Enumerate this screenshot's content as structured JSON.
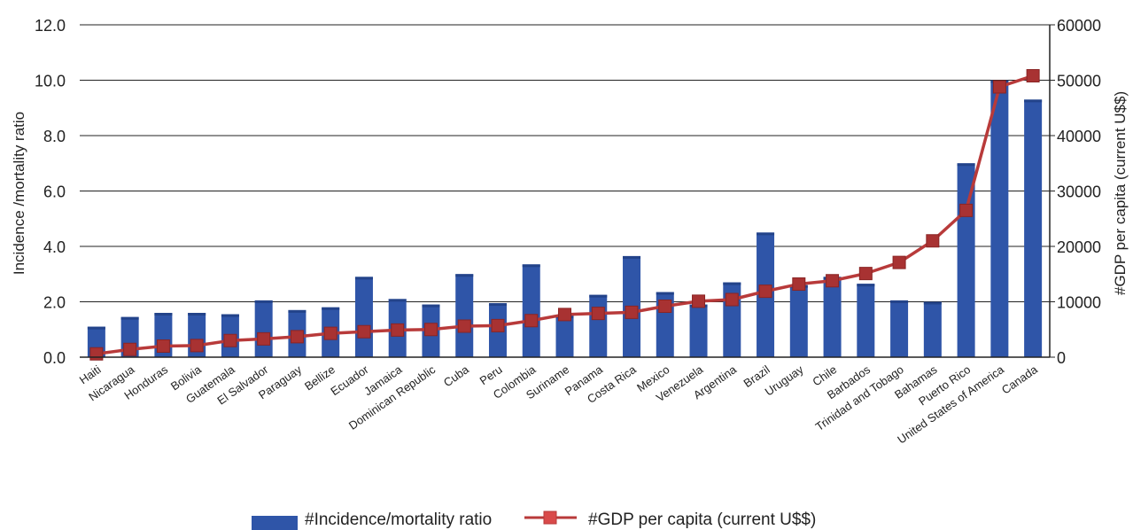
{
  "chart_data": {
    "type": "bar",
    "categories": [
      "Haiti",
      "Nicaragua",
      "Honduras",
      "Bolivia",
      "Guatemala",
      "El Salvador",
      "Paraguay",
      "Bellize",
      "Ecuador",
      "Jamaica",
      "Dominican Republic",
      "Cuba",
      "Peru",
      "Colombia",
      "Suriname",
      "Panama",
      "Costa Rica",
      "Mexico",
      "Venezuela",
      "Argentina",
      "Brazil",
      "Uruguay",
      "Chile",
      "Barbados",
      "Trinidad and Tobago",
      "Bahamas",
      "Puerto Rico",
      "United States of America",
      "Canada"
    ],
    "series": [
      {
        "name": "#Incidence/mortality ratio",
        "type": "bar",
        "axis": "left",
        "color": "#2f55a8",
        "values": [
          1.1,
          1.45,
          1.6,
          1.6,
          1.55,
          2.05,
          1.7,
          1.8,
          2.9,
          2.1,
          1.9,
          3.0,
          1.95,
          3.35,
          1.5,
          2.25,
          3.65,
          2.35,
          1.9,
          2.7,
          4.5,
          2.6,
          2.9,
          2.65,
          2.05,
          2.0,
          7.0,
          10.0,
          9.3
        ]
      },
      {
        "name": "#GDP per capita (current U$$)",
        "type": "line",
        "axis": "right",
        "color": "#b83a3a",
        "values": [
          600,
          1400,
          2000,
          2100,
          3000,
          3300,
          3700,
          4300,
          4600,
          4900,
          5000,
          5600,
          5700,
          6600,
          7700,
          7900,
          8100,
          9200,
          10100,
          10400,
          11900,
          13200,
          13800,
          15100,
          17100,
          21000,
          26500,
          48800,
          50800
        ]
      }
    ],
    "yleft": {
      "label": "Incidence /mortality ratio",
      "range": [
        0,
        12
      ],
      "ticks": [
        "0.0",
        "2.0",
        "4.0",
        "6.0",
        "8.0",
        "10.0",
        "12.0"
      ]
    },
    "yright": {
      "label": "#GDP per capita (current U$$)",
      "range": [
        0,
        60000
      ],
      "ticks": [
        "0",
        "10000",
        "20000",
        "30000",
        "40000",
        "50000",
        "60000"
      ]
    },
    "grid": true,
    "legend_position": "bottom"
  }
}
